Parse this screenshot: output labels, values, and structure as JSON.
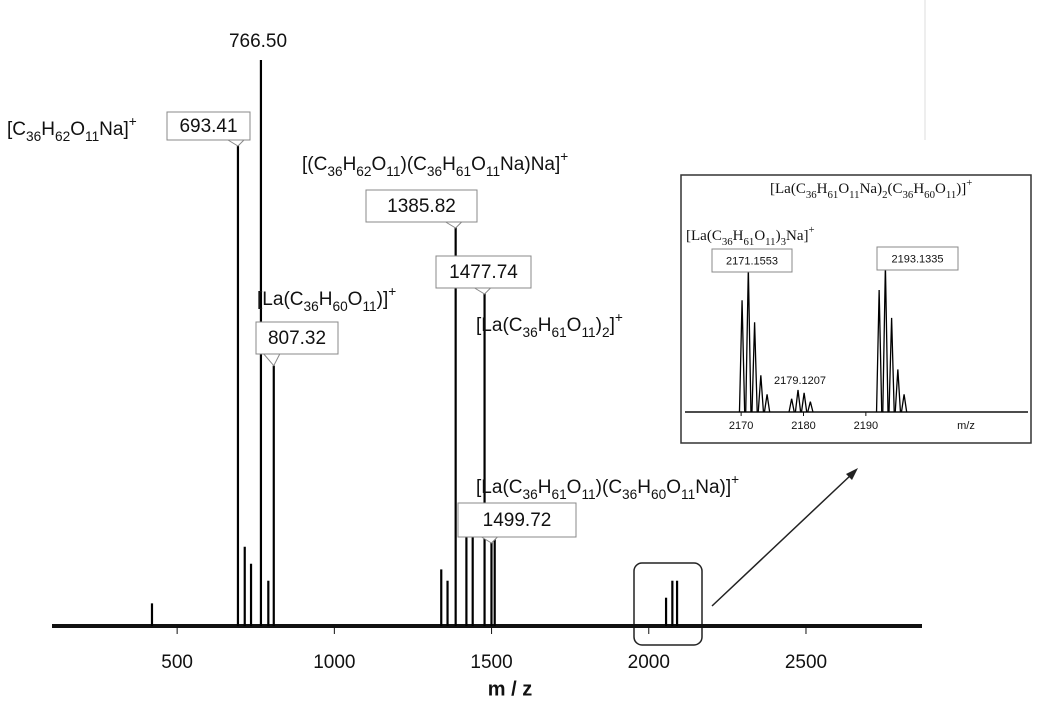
{
  "chart_data": [
    {
      "type": "spectrum",
      "x_label": "m / z",
      "xlim": [
        102,
        2869
      ],
      "xticks": [
        500,
        1000,
        1500,
        2000,
        2500
      ],
      "ylim": [
        0,
        100
      ],
      "color": "#000000",
      "x": [
        693.41,
        766.5,
        807.32,
        1385.82,
        1477.74,
        1499.72,
        420,
        715,
        735,
        790,
        1340,
        1360,
        1420,
        1440,
        1510,
        2055,
        2075,
        2090
      ],
      "values": [
        86,
        100,
        46,
        71,
        59,
        20,
        4,
        14,
        11,
        8,
        10,
        8,
        20,
        19,
        18,
        5,
        8,
        8
      ],
      "x_labels": [
        "693.41",
        "766.50",
        "807.32",
        "1385.82",
        "1477.74",
        "1499.72",
        null,
        null,
        null,
        null,
        null,
        null,
        null,
        null,
        null,
        null,
        null,
        null
      ],
      "annotations": [
        "[C36H62O11Na]+",
        "[La(C36H60O11)]+",
        "[(C36H62O11)(C36H61O11Na)Na]+",
        "[La(C36H61O11)2]+",
        "[La(C36H61O11)(C36H60O11Na)]+"
      ]
    },
    {
      "type": "spectrum",
      "x_label": "m/z",
      "xlim": [
        2161,
        2216
      ],
      "xticks": [
        2170,
        2180,
        2190
      ],
      "ylim": [
        0,
        100
      ],
      "color": "#000000",
      "x": [
        2170.15,
        2171.1553,
        2172.16,
        2173.16,
        2174.16,
        2178.1,
        2179.1207,
        2180.1,
        2181.1,
        2192.13,
        2193.1335,
        2194.13,
        2195.13,
        2196.13
      ],
      "values": [
        76,
        98,
        61,
        25,
        12,
        9,
        15,
        13,
        7,
        83,
        100,
        64,
        29,
        12
      ],
      "x_labels": [
        null,
        "2171.1553",
        null,
        null,
        null,
        null,
        "2179.1207",
        null,
        null,
        null,
        "2193.1335",
        null,
        null,
        null
      ],
      "annotations": [
        "[La(C36H61O11Na)2(C36H60O11)]+",
        "[La(C36H61O11)3Na]+"
      ]
    }
  ]
}
